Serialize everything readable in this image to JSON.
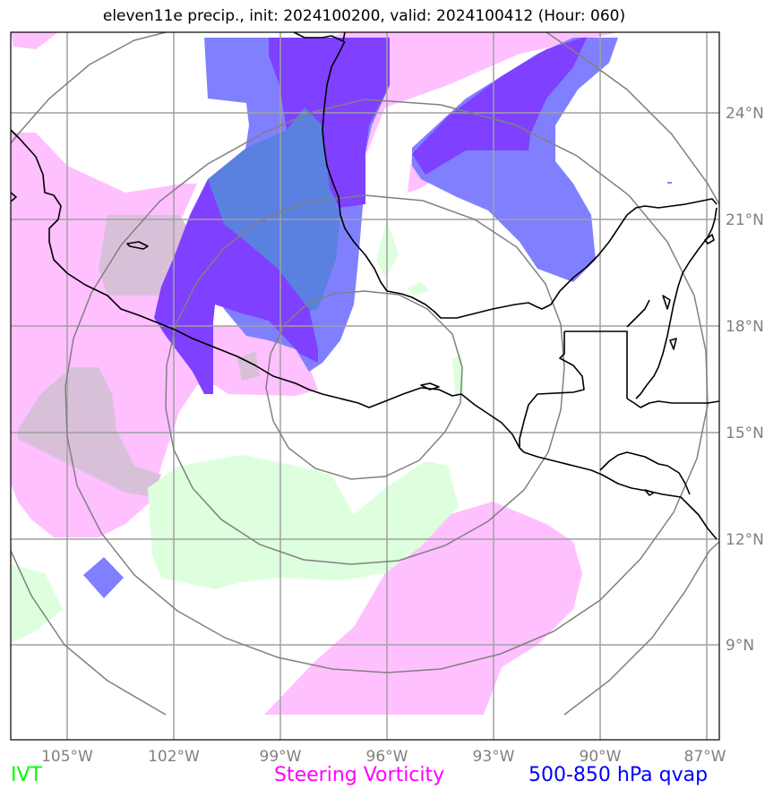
{
  "title": "eleven11e precip., init: 2024100200, valid: 2024100412 (Hour: 060)",
  "lon_ticks": [
    "105°W",
    "102°W",
    "99°W",
    "96°W",
    "93°W",
    "90°W",
    "87°W"
  ],
  "lat_ticks": [
    "24°N",
    "21°N",
    "18°N",
    "15°N",
    "12°N",
    "9°N"
  ],
  "legend": [
    {
      "label": "IVT",
      "color": "#00ff00"
    },
    {
      "label": "Steering Vorticity",
      "color": "#ff00ff"
    },
    {
      "label": "500-850 hPa qvap",
      "color": "#0000ff"
    }
  ],
  "colors": {
    "vorticity_fill": "#ffc0ff",
    "vorticity_overlap": "#d9c0d9",
    "ivt_fill": "#ddffdd",
    "qvap_light": "#8080ff",
    "qvap_dark": "#7f40ff",
    "qvap_blend": "#5a80e0",
    "coastline": "#000000",
    "grid": "#a0a0a0",
    "range_rings": "#808080"
  }
}
